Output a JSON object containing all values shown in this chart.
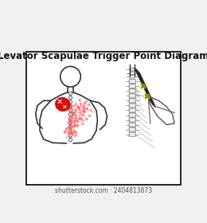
{
  "title": "Levator Scapulae Trigger Point Diagram",
  "title_fontsize": 8.5,
  "bg_color": "#ffffff",
  "border_color": "#000000",
  "watermark": "shutterstock.com · 2404813873",
  "watermark_fontsize": 5.5,
  "figure_bg": "#f0f0f0",
  "red_trigger": "#cc0000",
  "red_light": "#ff6666",
  "yellow_marker": "#ffff00",
  "body_outline": "#333333",
  "spine_color": "#555555"
}
